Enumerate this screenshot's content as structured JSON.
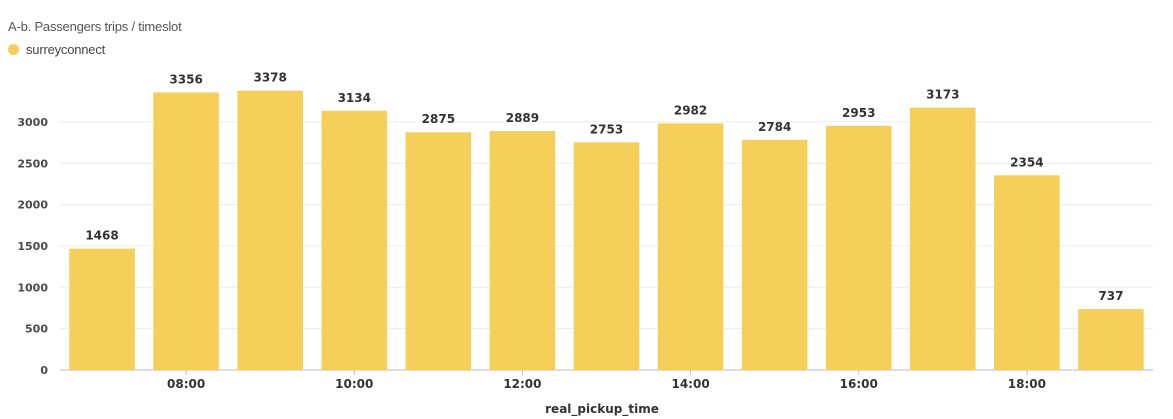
{
  "chart_data": {
    "type": "bar",
    "title": "A-b. Passengers trips / timeslot",
    "xlabel": "real_pickup_time",
    "ylabel": "",
    "ylim": [
      0,
      3500
    ],
    "yticks": [
      0,
      500,
      1000,
      1500,
      2000,
      2500,
      3000
    ],
    "grid": true,
    "legend_position": "top-left",
    "xtick_labels": [
      "08:00",
      "10:00",
      "12:00",
      "14:00",
      "16:00",
      "18:00"
    ],
    "xtick_after_bar": [
      1,
      3,
      5,
      7,
      9,
      11
    ],
    "series": [
      {
        "name": "surreyconnect",
        "color": "#f5cf5a",
        "values": [
          1468,
          3356,
          3378,
          3134,
          2875,
          2889,
          2753,
          2982,
          2784,
          2953,
          3173,
          2354,
          737
        ]
      }
    ]
  }
}
